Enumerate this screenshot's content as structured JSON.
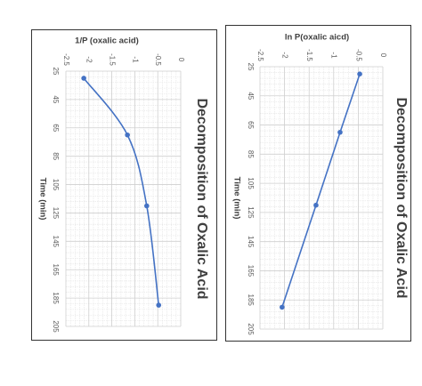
{
  "chart_data": [
    {
      "type": "line",
      "title": "Decomposition of Oxalic Acid",
      "y_label": "1/P (oxalic acid)",
      "x_label": "Time (min)",
      "x": [
        30,
        70,
        120,
        190
      ],
      "values": [
        -2.11,
        -1.16,
        -0.74,
        -0.48
      ],
      "color": "#4472c4",
      "smooth": true,
      "xlim": [
        25,
        205
      ],
      "xticks": [
        25,
        45,
        65,
        85,
        105,
        125,
        145,
        165,
        185,
        205
      ],
      "ylim": [
        -2.5,
        0
      ],
      "yticks": [
        -2.5,
        -2,
        -1.5,
        -1,
        -0.5,
        0
      ],
      "grid": true
    },
    {
      "type": "line",
      "title": "Decomposition of Oxalic Acid",
      "y_label": "ln P(oxalic aicd)",
      "x_label": "Time (min)",
      "x": [
        30,
        70,
        120,
        190
      ],
      "values": [
        -0.47,
        -0.87,
        -1.36,
        -2.05
      ],
      "color": "#4472c4",
      "smooth": false,
      "xlim": [
        25,
        205
      ],
      "xticks": [
        25,
        45,
        65,
        85,
        105,
        125,
        145,
        165,
        185,
        205
      ],
      "ylim": [
        -2.5,
        0
      ],
      "yticks": [
        -2.5,
        -2,
        -1.5,
        -1,
        -0.5,
        0
      ],
      "grid": true
    }
  ]
}
